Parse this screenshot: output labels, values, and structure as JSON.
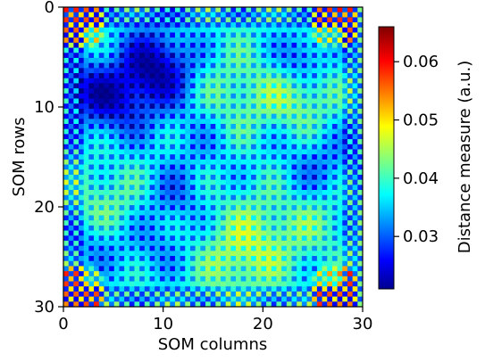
{
  "chart_data": {
    "type": "heatmap",
    "xlabel": "SOM columns",
    "ylabel": "SOM rows",
    "xlim": [
      0,
      30
    ],
    "ylim": [
      30,
      0
    ],
    "x_ticks": [
      "0",
      "10",
      "20",
      "30"
    ],
    "y_ticks": [
      "0",
      "10",
      "20",
      "30"
    ],
    "grid_size": [
      59,
      59
    ],
    "colormap": "jet",
    "colorbar": {
      "label": "Distance measure (a.u.)",
      "range": [
        0.021,
        0.066
      ],
      "ticks": [
        "0.03",
        "0.04",
        "0.05",
        "0.06"
      ],
      "tick_values": [
        0.03,
        0.04,
        0.05,
        0.06
      ]
    },
    "grid": false
  }
}
